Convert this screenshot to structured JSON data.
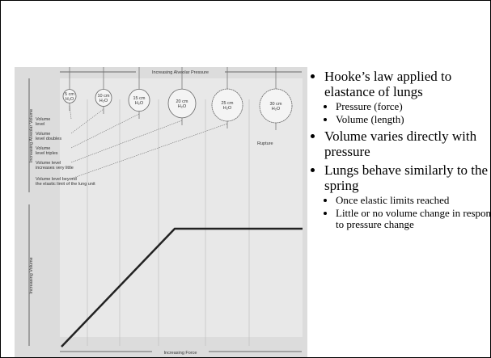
{
  "figure": {
    "top_axis": "Increasing Alveolar Pressure",
    "balloons": [
      [
        "5 cm",
        "H₂O"
      ],
      [
        "10 cm",
        "H₂O"
      ],
      [
        "15 cm",
        "H₂O"
      ],
      [
        "20 cm",
        "H₂O"
      ],
      [
        "25 cm",
        "H₂O"
      ],
      [
        "30 cm",
        "H₂O"
      ]
    ],
    "levels": [
      [
        "Volume",
        "level"
      ],
      [
        "Volume",
        "level doubles"
      ],
      [
        "Volume",
        "level triples"
      ],
      [
        "Volume level",
        "increases very little"
      ],
      [
        "Volume level beyond",
        "the elastic limit of the lung unit"
      ]
    ],
    "rupture": "Rupture",
    "upper_axis": "Increasing Alveolar Volume",
    "lower_axis": "Increasing Volume",
    "bottom_axis": "Increasing Force"
  },
  "bullets": [
    {
      "text": "Hooke’s law applied to elastance of lungs",
      "sub": [
        "Pressure (force)",
        "Volume (length)"
      ]
    },
    {
      "text": "Volume varies directly with pressure",
      "sub": []
    },
    {
      "text": "Lungs behave similarly to the spring",
      "sub": [
        "Once elastic limits reached",
        "Little or no volume change in response to pressure change"
      ]
    }
  ]
}
